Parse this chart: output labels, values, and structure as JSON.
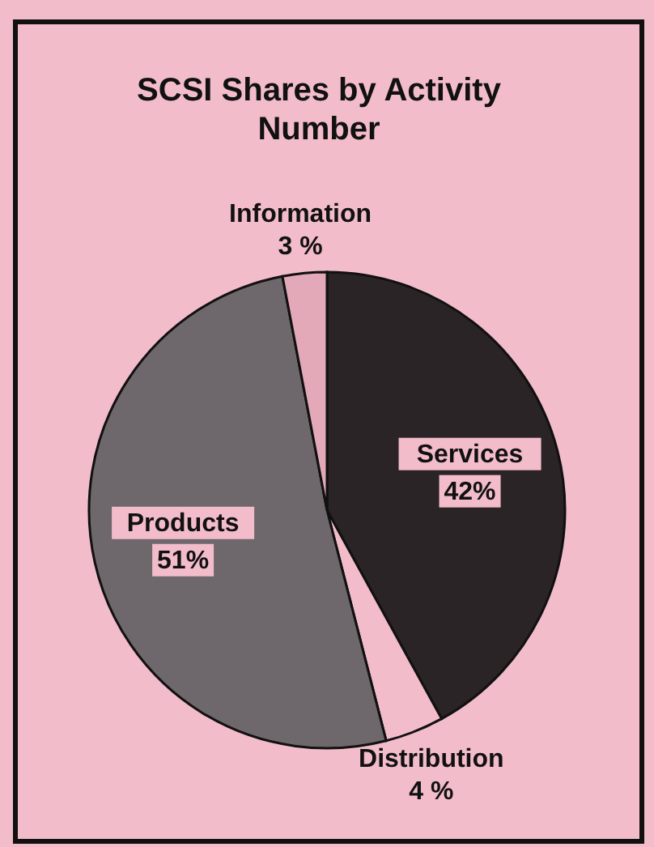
{
  "chart_data": {
    "type": "pie",
    "title": "SCSI Shares by Activity Number",
    "categories": [
      "Services",
      "Distribution",
      "Products",
      "Information"
    ],
    "values": [
      42,
      4,
      51,
      3
    ],
    "value_labels": [
      "42%",
      "4 %",
      "51%",
      "3 %"
    ],
    "colors": [
      "#2b2427",
      "#f3bccb",
      "#6e676b",
      "#e3a9b9"
    ]
  }
}
